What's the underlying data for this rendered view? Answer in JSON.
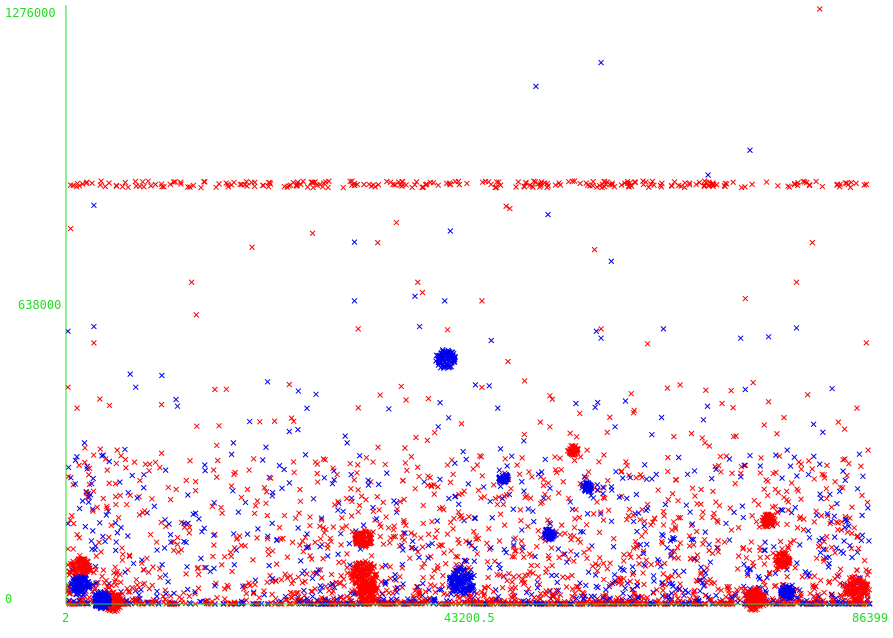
{
  "chart_data": {
    "type": "scatter",
    "title": "",
    "xlabel": "",
    "ylabel": "",
    "xlim": [
      2,
      86399
    ],
    "ylim": [
      0,
      1276000
    ],
    "grid": false,
    "x_tick_labels": [
      "2",
      "43200.5",
      "86399"
    ],
    "y_tick_labels": [
      "0",
      "638000",
      "1276000"
    ],
    "marker": "x",
    "colors": {
      "axis": "#22dd22",
      "series_a": "#ff0000",
      "series_b": "#0000ee"
    },
    "series": [
      {
        "color": "#ff0000",
        "points": [
          [
            46700,
            898000
          ],
          [
            47300,
            853000
          ],
          [
            47700,
            848000
          ],
          [
            81000,
            1276000
          ],
          [
            35500,
            818000
          ],
          [
            37800,
            690000
          ],
          [
            33500,
            775000
          ],
          [
            26500,
            795000
          ],
          [
            20000,
            765000
          ],
          [
            13500,
            690000
          ],
          [
            16000,
            460000
          ],
          [
            16200,
            340000
          ],
          [
            38300,
            668000
          ],
          [
            31400,
            590000
          ],
          [
            41000,
            588000
          ],
          [
            62500,
            558000
          ],
          [
            56800,
            760000
          ],
          [
            57500,
            590000
          ],
          [
            73000,
            655000
          ],
          [
            78500,
            690000
          ],
          [
            80200,
            775000
          ],
          [
            86000,
            560000
          ],
          [
            85000,
            420000
          ],
          [
            44700,
            650000
          ],
          [
            14000,
            620000
          ],
          [
            47500,
            520000
          ],
          [
            66000,
            470000
          ],
          [
            70500,
            430000
          ],
          [
            500,
            805000
          ],
          [
            1200,
            420000
          ],
          [
            3000,
            560000
          ],
          [
            5500,
            330000
          ],
          [
            9000,
            300000
          ],
          [
            22000,
            270000
          ],
          [
            27000,
            300000
          ],
          [
            52000,
            380000
          ],
          [
            56000,
            330000
          ],
          [
            61000,
            410000
          ],
          [
            72000,
            360000
          ],
          [
            76000,
            280000
          ],
          [
            79000,
            300000
          ],
          [
            83000,
            390000
          ],
          [
            86200,
            330000
          ],
          [
            11000,
            250000
          ]
        ],
        "clusters": [
          {
            "x": 1500,
            "y": 75000,
            "r": 11
          },
          {
            "x": 32000,
            "y": 140000,
            "r": 9
          },
          {
            "x": 32000,
            "y": 65000,
            "r": 13
          },
          {
            "x": 32500,
            "y": 25000,
            "r": 11
          },
          {
            "x": 75500,
            "y": 180000,
            "r": 7
          },
          {
            "x": 77000,
            "y": 95000,
            "r": 8
          },
          {
            "x": 85000,
            "y": 30000,
            "r": 12
          },
          {
            "x": 5000,
            "y": 5000,
            "r": 10
          },
          {
            "x": 74000,
            "y": 10000,
            "r": 11
          },
          {
            "x": 54500,
            "y": 330000,
            "r": 5
          }
        ]
      },
      {
        "color": "#0000ee",
        "points": [
          [
            57500,
            1161000
          ],
          [
            50500,
            1110000
          ],
          [
            73500,
            973000
          ],
          [
            69000,
            920000
          ],
          [
            3000,
            855000
          ],
          [
            3000,
            595000
          ],
          [
            0,
            585000
          ],
          [
            6900,
            493000
          ],
          [
            7500,
            465000
          ],
          [
            31000,
            776000
          ],
          [
            31000,
            650000
          ],
          [
            38000,
            595000
          ],
          [
            37500,
            660000
          ],
          [
            57000,
            585000
          ],
          [
            57500,
            570000
          ],
          [
            45700,
            565000
          ],
          [
            58600,
            735000
          ],
          [
            51800,
            835000
          ],
          [
            64200,
            590000
          ],
          [
            72500,
            570000
          ],
          [
            75500,
            573000
          ],
          [
            78500,
            592000
          ],
          [
            41300,
            800000
          ],
          [
            40700,
            650000
          ],
          [
            46400,
            420000
          ],
          [
            49200,
            350000
          ],
          [
            51500,
            310000
          ],
          [
            54800,
            430000
          ],
          [
            59000,
            380000
          ],
          [
            64000,
            400000
          ],
          [
            68500,
            395000
          ],
          [
            73000,
            460000
          ],
          [
            77500,
            330000
          ],
          [
            81000,
            300000
          ],
          [
            83500,
            285000
          ],
          [
            10300,
            490000
          ],
          [
            24000,
            370000
          ],
          [
            30000,
            360000
          ],
          [
            40000,
            380000
          ],
          [
            44000,
            470000
          ]
        ],
        "clusters": [
          {
            "x": 40800,
            "y": 525000,
            "r": 10
          },
          {
            "x": 42500,
            "y": 48000,
            "r": 13
          },
          {
            "x": 1500,
            "y": 40000,
            "r": 10
          },
          {
            "x": 3800,
            "y": 8000,
            "r": 9
          },
          {
            "x": 56000,
            "y": 250000,
            "r": 5
          },
          {
            "x": 77500,
            "y": 25000,
            "r": 7
          },
          {
            "x": 47000,
            "y": 270000,
            "r": 5
          },
          {
            "x": 52000,
            "y": 150000,
            "r": 6
          }
        ]
      }
    ]
  }
}
